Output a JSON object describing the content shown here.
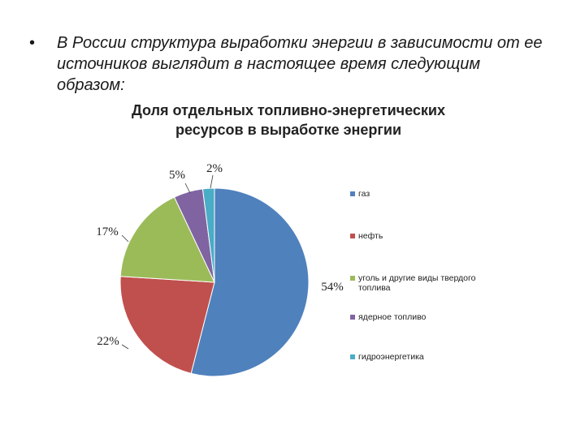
{
  "slide": {
    "bullet_symbol": "•",
    "bullet_text": "В России структура выработки энергии в зависимости от ее источников выглядит в настоящее время следующим образом:"
  },
  "chart_data": {
    "type": "pie",
    "title": [
      "Доля отдельных топливно-энергетических",
      "ресурсов в выработке энергии"
    ],
    "categories": [
      "газ",
      "нефть",
      "уголь и другие виды твердого топлива",
      "ядерное топливо",
      "гидроэнергетика"
    ],
    "values": [
      54,
      22,
      17,
      5,
      2
    ],
    "data_labels": [
      "54%",
      "22%",
      "17%",
      "5%",
      "2%"
    ],
    "colors": [
      "#4f81bd",
      "#c0504d",
      "#9bbb59",
      "#8064a2",
      "#4bacc6"
    ],
    "legend_position": "right"
  }
}
